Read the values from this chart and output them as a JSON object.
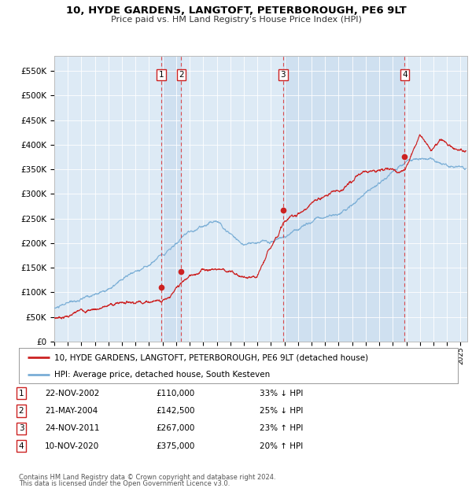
{
  "title": "10, HYDE GARDENS, LANGTOFT, PETERBOROUGH, PE6 9LT",
  "subtitle": "Price paid vs. HM Land Registry's House Price Index (HPI)",
  "title_fontsize": 9.5,
  "subtitle_fontsize": 8.0,
  "background_color": "#ffffff",
  "plot_bg_color": "#ddeaf5",
  "grid_color": "#ffffff",
  "ylabel_ticks": [
    "£0",
    "£50K",
    "£100K",
    "£150K",
    "£200K",
    "£250K",
    "£300K",
    "£350K",
    "£400K",
    "£450K",
    "£500K",
    "£550K"
  ],
  "ylabel_values": [
    0,
    50000,
    100000,
    150000,
    200000,
    250000,
    300000,
    350000,
    400000,
    450000,
    500000,
    550000
  ],
  "ylim": [
    0,
    580000
  ],
  "xlim_start": 1995.0,
  "xlim_end": 2025.5,
  "x_ticks": [
    1995,
    1996,
    1997,
    1998,
    1999,
    2000,
    2001,
    2002,
    2003,
    2004,
    2005,
    2006,
    2007,
    2008,
    2009,
    2010,
    2011,
    2012,
    2013,
    2014,
    2015,
    2016,
    2017,
    2018,
    2019,
    2020,
    2021,
    2022,
    2023,
    2024,
    2025
  ],
  "hpi_color": "#7aaed6",
  "price_color": "#cc2222",
  "sale_marker_color": "#cc2222",
  "dashed_line_color": "#dd3333",
  "transactions": [
    {
      "id": 1,
      "date": 2002.9,
      "price": 110000,
      "label": "22-NOV-2002",
      "price_label": "£110,000",
      "pct": "33% ↓ HPI"
    },
    {
      "id": 2,
      "date": 2004.38,
      "price": 142500,
      "label": "21-MAY-2004",
      "price_label": "£142,500",
      "pct": "25% ↓ HPI"
    },
    {
      "id": 3,
      "date": 2011.9,
      "price": 267000,
      "label": "24-NOV-2011",
      "price_label": "£267,000",
      "pct": "23% ↑ HPI"
    },
    {
      "id": 4,
      "date": 2020.87,
      "price": 375000,
      "label": "10-NOV-2020",
      "price_label": "£375,000",
      "pct": "20% ↑ HPI"
    }
  ],
  "legend_line1": "10, HYDE GARDENS, LANGTOFT, PETERBOROUGH, PE6 9LT (detached house)",
  "legend_line2": "HPI: Average price, detached house, South Kesteven",
  "footer1": "Contains HM Land Registry data © Crown copyright and database right 2024.",
  "footer2": "This data is licensed under the Open Government Licence v3.0."
}
